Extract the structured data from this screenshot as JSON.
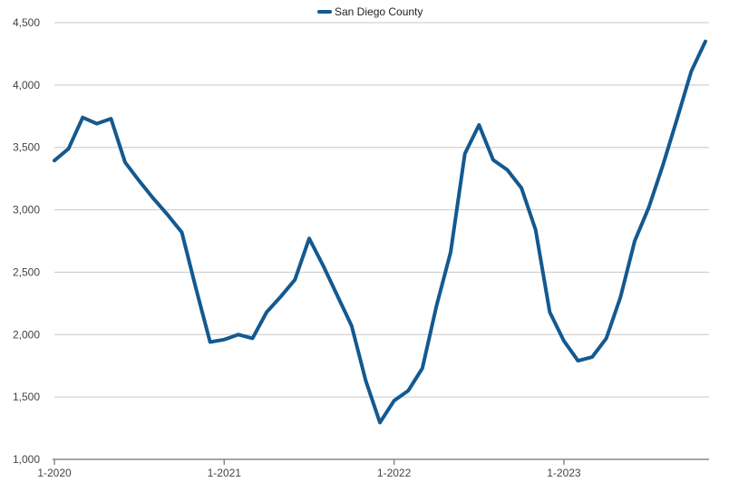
{
  "chart_data": {
    "type": "line",
    "title": "",
    "xlabel": "",
    "ylabel": "",
    "ylim": [
      1000,
      4500
    ],
    "y_ticks": [
      {
        "value": 4500,
        "label": "4,500"
      },
      {
        "value": 4000,
        "label": "4,000"
      },
      {
        "value": 3500,
        "label": "3,500"
      },
      {
        "value": 3000,
        "label": "3,000"
      },
      {
        "value": 2500,
        "label": "2,500"
      },
      {
        "value": 2000,
        "label": "2,000"
      },
      {
        "value": 1500,
        "label": "1,500"
      },
      {
        "value": 1000,
        "label": "1,000"
      }
    ],
    "x_ticks": [
      {
        "index": 0,
        "label": "1-2020"
      },
      {
        "index": 12,
        "label": "1-2021"
      },
      {
        "index": 24,
        "label": "1-2022"
      },
      {
        "index": 36,
        "label": "1-2023"
      }
    ],
    "grid": true,
    "legend_position": "top-center",
    "series": [
      {
        "name": "San Diego County",
        "color": "#14598f",
        "values": [
          3395,
          3490,
          3740,
          3690,
          3730,
          3380,
          3230,
          3090,
          2960,
          2820,
          2370,
          1940,
          1960,
          2000,
          1970,
          2180,
          2305,
          2440,
          2770,
          2550,
          2310,
          2070,
          1630,
          1295,
          1470,
          1550,
          1730,
          2230,
          2660,
          3450,
          3680,
          3400,
          3320,
          3175,
          2840,
          2180,
          1950,
          1790,
          1820,
          1970,
          2300,
          2750,
          3020,
          3360,
          3730,
          4110,
          4350
        ]
      }
    ]
  }
}
